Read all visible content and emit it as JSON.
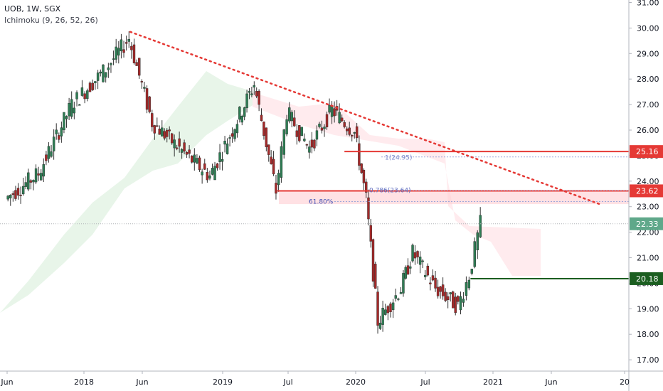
{
  "header": {
    "symbol": "UOB, 1W, SGX",
    "indicator": "Ichimoku (9, 26, 52, 26)"
  },
  "colors": {
    "up": "#26a69a",
    "down": "#ef5350",
    "up_candle": "#2e7d54",
    "down_candle": "#a52a2a",
    "trendline": "#e53935",
    "resistance": "#e53935",
    "support": "#1b5e20",
    "last_price": "#5fa88a",
    "cloud_bull": "#e8f5e9",
    "cloud_bear": "#ffebee"
  },
  "chart_data": {
    "type": "candlestick",
    "y_ticks": [
      "17.00",
      "18.00",
      "19.00",
      "20.00",
      "21.00",
      "22.00",
      "23.00",
      "24.00",
      "25.00",
      "26.00",
      "27.00",
      "28.00",
      "29.00",
      "30.00",
      "31.00"
    ],
    "x_ticks": [
      "Jun",
      "2018",
      "Jun",
      "2019",
      "Jul",
      "2020",
      "Jul",
      "2021",
      "Jun",
      "20"
    ],
    "ylim": [
      16.6,
      31.1
    ],
    "price_labels": [
      {
        "value": "25.16",
        "role": "resistance"
      },
      {
        "value": "23.62",
        "role": "resistance"
      },
      {
        "value": "22.33",
        "role": "last"
      },
      {
        "value": "20.18",
        "role": "support"
      }
    ],
    "fib_labels": [
      "1(24.95)",
      "0.786(23.64)",
      "61.80%"
    ],
    "horizontal_levels": [
      {
        "price": 25.16,
        "from": "2019-12",
        "color": "resistance"
      },
      {
        "price": 23.62,
        "from": "2019-06",
        "color": "resistance"
      },
      {
        "price": 20.18,
        "from": "2020-11",
        "color": "support"
      }
    ],
    "trendline": {
      "from": {
        "date": "2018-05",
        "price": 29.85
      },
      "to": {
        "date": "2021-10",
        "price": 23.1
      }
    },
    "weekly_close_approx": [
      {
        "date": "2017-06",
        "close": 23.3
      },
      {
        "date": "2017-09",
        "close": 24.3
      },
      {
        "date": "2017-12",
        "close": 27.0
      },
      {
        "date": "2018-03",
        "close": 28.4
      },
      {
        "date": "2018-05",
        "close": 29.6
      },
      {
        "date": "2018-07",
        "close": 26.3
      },
      {
        "date": "2018-10",
        "close": 25.0
      },
      {
        "date": "2018-12",
        "close": 24.2
      },
      {
        "date": "2019-02",
        "close": 26.0
      },
      {
        "date": "2019-04",
        "close": 27.8
      },
      {
        "date": "2019-06",
        "close": 23.6
      },
      {
        "date": "2019-07",
        "close": 26.7
      },
      {
        "date": "2019-09",
        "close": 25.3
      },
      {
        "date": "2019-11",
        "close": 26.8
      },
      {
        "date": "2020-01",
        "close": 25.9
      },
      {
        "date": "2020-02",
        "close": 23.3
      },
      {
        "date": "2020-03",
        "close": 18.5
      },
      {
        "date": "2020-05",
        "close": 19.8
      },
      {
        "date": "2020-06",
        "close": 21.2
      },
      {
        "date": "2020-08",
        "close": 19.8
      },
      {
        "date": "2020-10",
        "close": 19.1
      },
      {
        "date": "2020-11",
        "close": 20.3
      },
      {
        "date": "2020-12",
        "close": 22.33
      }
    ]
  }
}
